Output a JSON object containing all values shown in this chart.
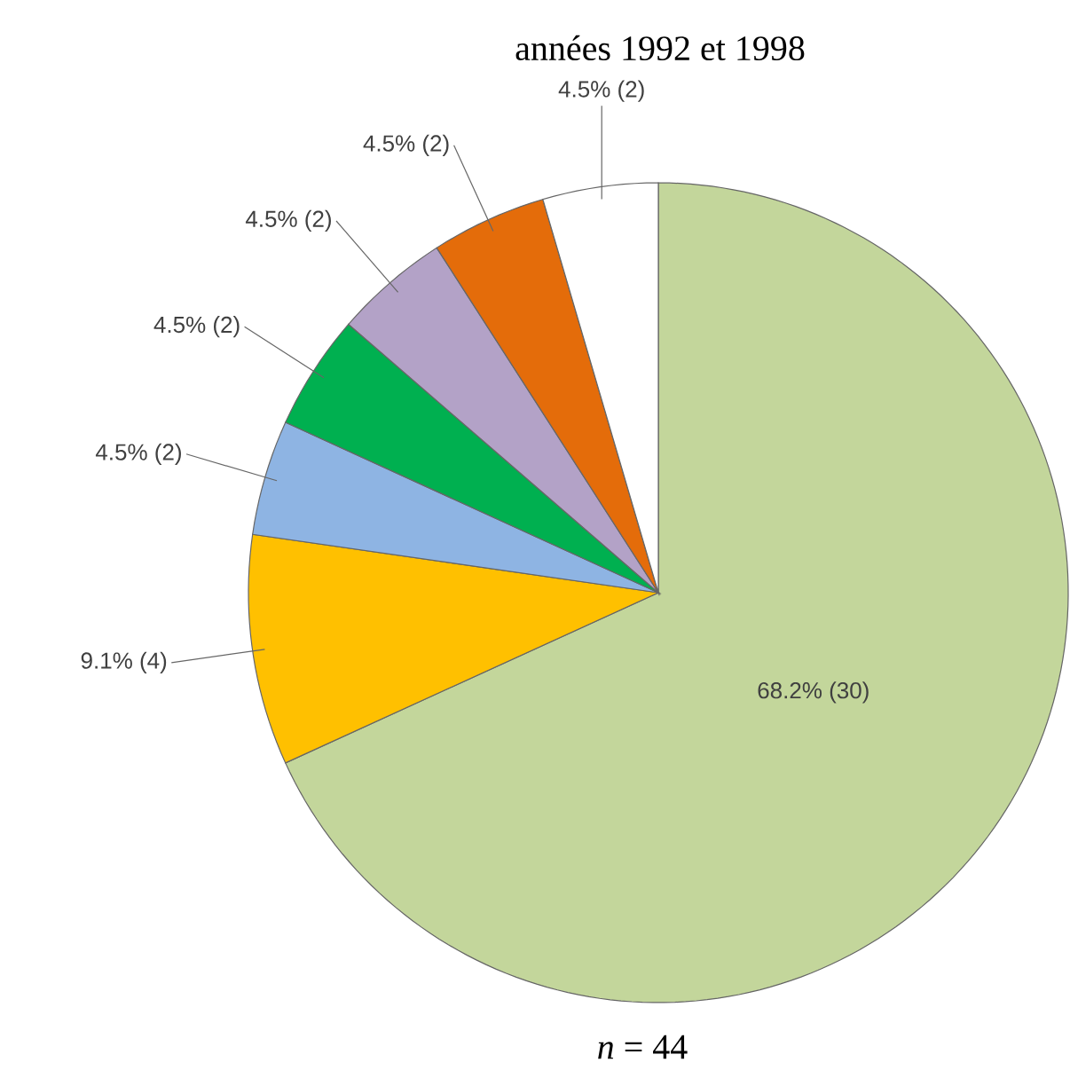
{
  "chart_data": {
    "type": "pie",
    "title": "années 1992 et 1998",
    "categories": [
      null,
      null,
      null,
      null,
      null,
      null,
      null
    ],
    "values": [
      30,
      4,
      2,
      2,
      2,
      2,
      2
    ],
    "colors": [
      "#c3d69b",
      "#ffc000",
      "#8eb4e3",
      "#00b050",
      "#b3a2c7",
      "#e46c0a",
      "#ffffff"
    ],
    "value_labels": [
      "68.2% (30)",
      "9.1% (4)",
      "4.5% (2)",
      "4.5% (2)",
      "4.5% (2)",
      "4.5% (2)",
      "4.5% (2)"
    ],
    "annotations": [
      "*n* = 44"
    ]
  }
}
